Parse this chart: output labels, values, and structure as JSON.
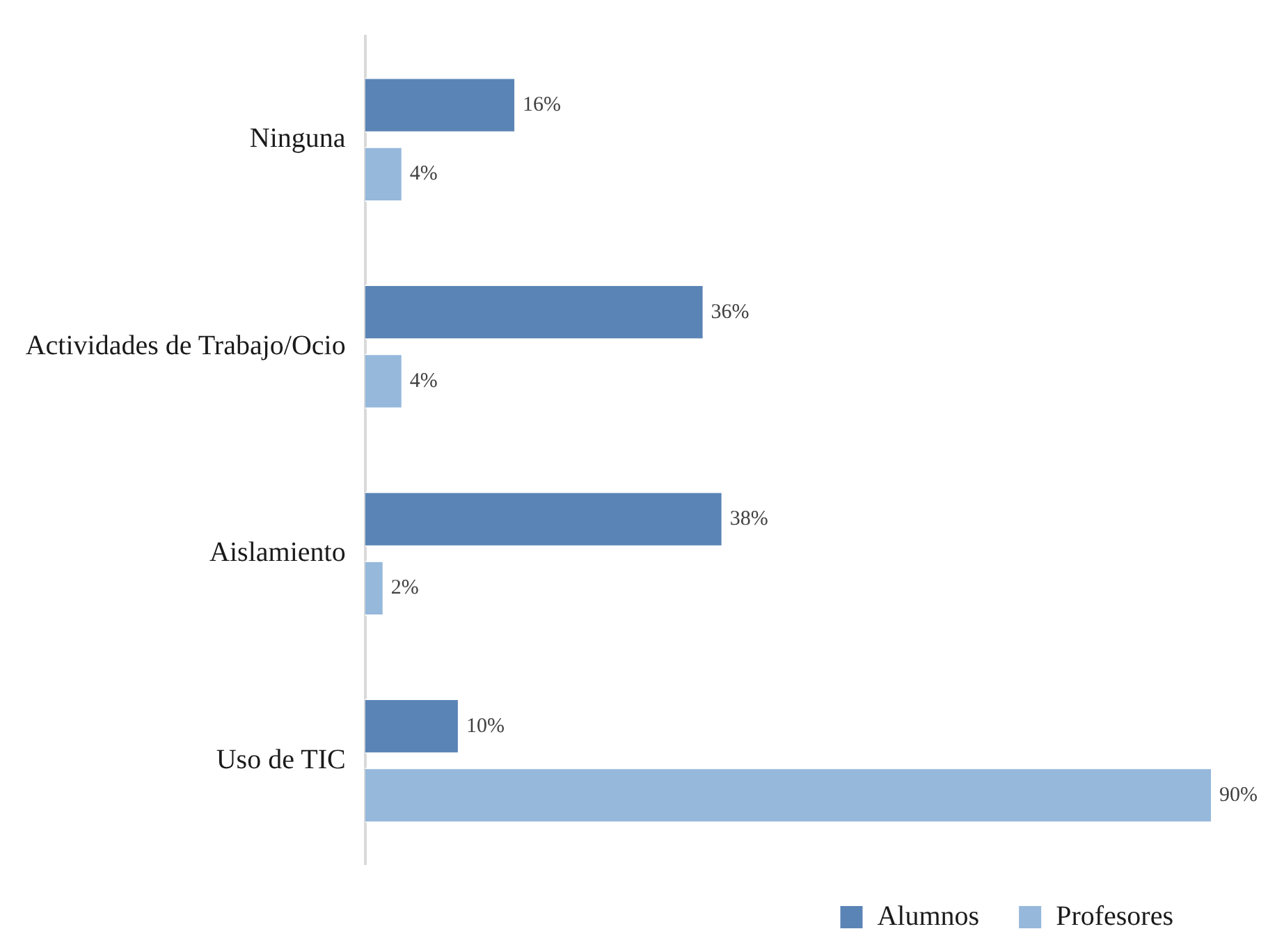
{
  "chart_data": {
    "type": "bar",
    "orientation": "horizontal",
    "categories": [
      "Ninguna",
      "Actividades de Trabajo/Ocio",
      "Aislamiento",
      "Uso de TIC"
    ],
    "series": [
      {
        "name": "Alumnos",
        "color": "#5b84b6",
        "values": [
          16,
          36,
          38,
          10
        ],
        "value_labels": [
          "16%",
          "36%",
          "38%",
          "10%"
        ]
      },
      {
        "name": "Profesores",
        "color": "#95b8db",
        "values": [
          4,
          4,
          2,
          90
        ],
        "value_labels": [
          "4%",
          "4%",
          "2%",
          "90%"
        ]
      }
    ],
    "legend": "bottom right",
    "tick_labels": "y"
  }
}
